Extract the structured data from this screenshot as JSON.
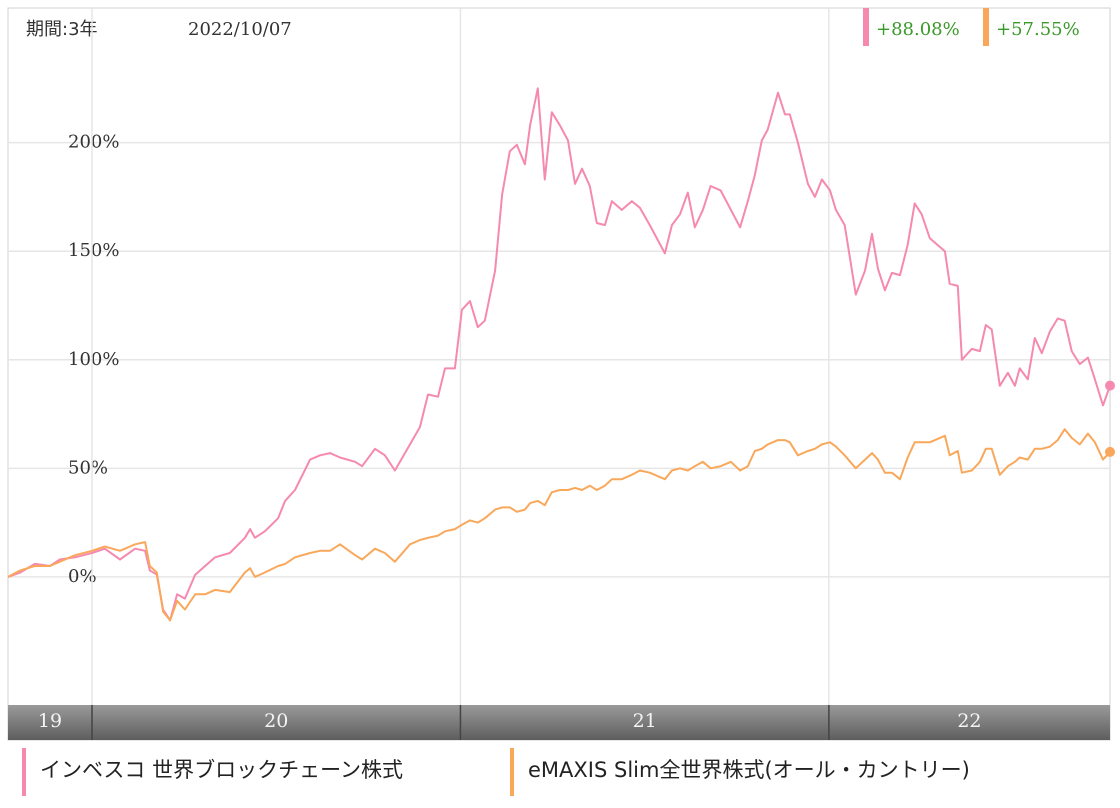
{
  "chart_data": {
    "type": "line",
    "period_label": "期間:3年",
    "date": "2022/10/07",
    "x": [
      19.772,
      19.805,
      19.845,
      19.886,
      19.913,
      19.954,
      20.0,
      20.035,
      20.076,
      20.117,
      20.144,
      20.157,
      20.176,
      20.193,
      20.212,
      20.231,
      20.252,
      20.28,
      20.307,
      20.334,
      20.374,
      20.415,
      20.429,
      20.442,
      20.469,
      20.505,
      20.524,
      20.551,
      20.592,
      20.619,
      20.646,
      20.673,
      20.714,
      20.733,
      20.768,
      20.795,
      20.822,
      20.863,
      20.89,
      20.912,
      20.939,
      20.958,
      20.985,
      21.004,
      21.026,
      21.047,
      21.066,
      21.094,
      21.113,
      21.134,
      21.153,
      21.175,
      21.189,
      21.21,
      21.229,
      21.248,
      21.27,
      21.292,
      21.311,
      21.33,
      21.351,
      21.37,
      21.392,
      21.411,
      21.438,
      21.465,
      21.487,
      21.514,
      21.555,
      21.574,
      21.596,
      21.617,
      21.636,
      21.658,
      21.679,
      21.706,
      21.734,
      21.759,
      21.78,
      21.799,
      21.818,
      21.834,
      21.862,
      21.881,
      21.894,
      21.916,
      21.943,
      21.962,
      21.981,
      22.003,
      22.019,
      22.043,
      22.073,
      22.098,
      22.117,
      22.133,
      22.152,
      22.171,
      22.193,
      22.214,
      22.233,
      22.252,
      22.274,
      22.315,
      22.328,
      22.35,
      22.361,
      22.388,
      22.41,
      22.426,
      22.442,
      22.464,
      22.486,
      22.505,
      22.518,
      22.54,
      22.559,
      22.578,
      22.6,
      22.621,
      22.64,
      22.659,
      22.681,
      22.703,
      22.722,
      22.744,
      22.763
    ],
    "series": [
      {
        "name": "インベスコ 世界ブロックチェーン株式",
        "color": "#f589b0",
        "change_label": "+88.08%",
        "values": [
          0,
          2,
          6,
          5,
          8,
          9,
          11,
          13,
          8,
          13,
          12,
          3,
          1,
          -15,
          -20,
          -8,
          -10,
          1,
          5,
          9,
          11,
          18,
          22,
          18,
          21,
          27,
          35,
          40,
          54,
          56,
          57,
          55,
          53,
          51,
          59,
          56,
          49,
          61,
          69,
          84,
          83,
          96,
          96,
          123,
          127,
          115,
          118,
          141,
          176,
          196,
          199,
          190,
          208,
          225,
          183,
          214,
          208,
          201,
          181,
          188,
          180,
          163,
          162,
          173,
          169,
          173,
          170,
          162,
          149,
          162,
          167,
          177,
          161,
          169,
          180,
          178,
          169,
          161,
          173,
          185,
          201,
          206,
          223,
          213,
          213,
          200,
          181,
          175,
          183,
          178,
          169,
          162,
          130,
          141,
          158,
          142,
          132,
          140,
          139,
          153,
          172,
          167,
          156,
          150,
          135,
          134,
          100,
          105,
          104,
          116,
          114,
          88,
          94,
          88,
          96,
          91,
          110,
          103,
          113,
          119,
          118,
          104,
          98,
          101,
          91,
          79,
          88.08
        ]
      },
      {
        "name": "eMAXIS Slim全世界株式(オール・カントリー)",
        "color": "#f9a85b",
        "change_label": "+57.55%",
        "values": [
          0,
          3,
          5,
          5,
          7,
          10,
          12,
          14,
          12,
          15,
          16,
          5,
          2,
          -16,
          -20,
          -11,
          -15,
          -8,
          -8,
          -6,
          -7,
          2,
          4,
          0,
          2,
          5,
          6,
          9,
          11,
          12,
          12,
          15,
          10,
          8,
          13,
          11,
          7,
          15,
          17,
          18,
          19,
          21,
          22,
          24,
          26,
          25,
          27,
          31,
          32,
          32,
          30,
          31,
          34,
          35,
          33,
          39,
          40,
          40,
          41,
          40,
          42,
          40,
          42,
          45,
          45,
          47,
          49,
          48,
          45,
          49,
          50,
          49,
          51,
          53,
          50,
          51,
          53,
          49,
          51,
          58,
          59,
          61,
          63,
          63,
          62,
          56,
          58,
          59,
          61,
          62,
          60,
          56,
          50,
          54,
          57,
          54,
          48,
          48,
          45,
          55,
          62,
          62,
          62,
          65,
          56,
          58,
          48,
          49,
          53,
          59,
          59,
          47,
          51,
          53,
          55,
          54,
          59,
          59,
          60,
          63,
          68,
          64,
          61,
          66,
          62,
          54,
          57.55
        ]
      }
    ],
    "xlim": [
      19.772,
      22.763
    ],
    "xticks": [
      19,
      20,
      21,
      22
    ],
    "ylim": [
      -59,
      262
    ],
    "yticks": [
      {
        "value": 0,
        "label": "0%"
      },
      {
        "value": 50,
        "label": "50%"
      },
      {
        "value": 100,
        "label": "100%"
      },
      {
        "value": 150,
        "label": "150%"
      },
      {
        "value": 200,
        "label": "200%"
      }
    ],
    "grid": true,
    "change_color": "#3a9a2a"
  }
}
